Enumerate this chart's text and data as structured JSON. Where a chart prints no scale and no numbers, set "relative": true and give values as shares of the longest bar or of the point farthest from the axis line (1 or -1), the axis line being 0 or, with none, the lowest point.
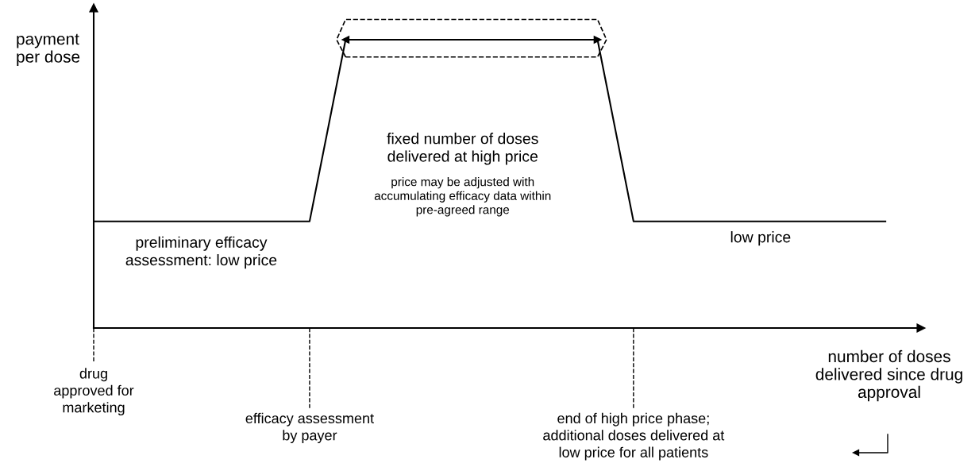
{
  "chart_data": {
    "type": "line",
    "relative": true,
    "xlabel": "number of doses\ndelivered since drug\napproval",
    "ylabel": "payment\nper dose",
    "categories": [
      null,
      null,
      null,
      null,
      null,
      null,
      null,
      null,
      null,
      null,
      null,
      null,
      null,
      null,
      null,
      null,
      null,
      null,
      null,
      null,
      null,
      null,
      null
    ],
    "series": [
      {
        "color": "#000000",
        "values": [
          0.37,
          0.37,
          0.37,
          0.37,
          0.37,
          0.37,
          0.37,
          1,
          1,
          1,
          1,
          1,
          1,
          1,
          1,
          0.37,
          0.37,
          0.37,
          0.37,
          0.37,
          0.37,
          0.37,
          0.37
        ]
      }
    ],
    "annotations": [
      "preliminary efficacy\nassessment: low price",
      "fixed number of doses\ndelivered at high price",
      "price may be adjusted with\naccumulating efficacy data within\npre-agreed range",
      "low price",
      "drug\napproved for\nmarketing",
      "efficacy assessment\nby payer",
      "end of high price phase;\nadditional doses delivered at\nlow price for all patients"
    ]
  }
}
